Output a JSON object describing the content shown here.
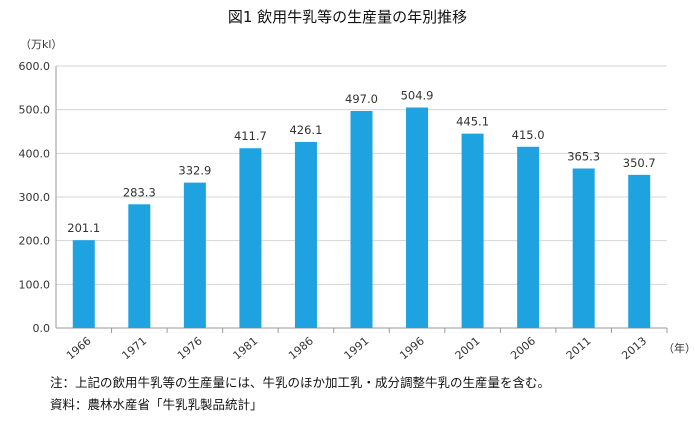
{
  "chart_data": {
    "type": "bar",
    "title": "図1 飲用牛乳等の生産量の年別推移",
    "ylabel": "（万kl）",
    "xlabel": "（年）",
    "categories": [
      "1966",
      "1971",
      "1976",
      "1981",
      "1986",
      "1991",
      "1996",
      "2001",
      "2006",
      "2011",
      "2013"
    ],
    "values": [
      201.1,
      283.3,
      332.9,
      411.7,
      426.1,
      497.0,
      504.9,
      445.1,
      415.0,
      365.3,
      350.7
    ],
    "value_labels": [
      "201.1",
      "283.3",
      "332.9",
      "411.7",
      "426.1",
      "497.0",
      "504.9",
      "445.1",
      "415.0",
      "365.3",
      "350.7"
    ],
    "yticks": [
      "0.0",
      "100.0",
      "200.0",
      "300.0",
      "400.0",
      "500.0",
      "600.0"
    ],
    "ylim": [
      0,
      600
    ],
    "grid": "horizontal",
    "bar_color": "#1fa3e0"
  },
  "notes": {
    "note": "注：上記の飲用牛乳等の生産量には、牛乳のほか加工乳・成分調整牛乳の生産量を含む。",
    "source": "資料：農林水産省「牛乳乳製品統計」"
  }
}
